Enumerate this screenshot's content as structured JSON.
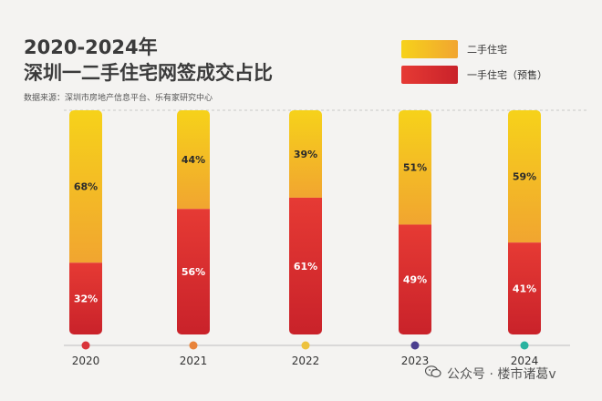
{
  "header": {
    "title_line1": "2020-2024年",
    "title_line2": "深圳一二手住宅网签成交占比",
    "source": "数据来源：深圳市房地产信息平台、乐有家研究中心"
  },
  "footer": {
    "watermark": "公众号 · 楼市诸葛v"
  },
  "colors": {
    "second_hand_top": "#f6d21a",
    "second_hand_bottom": "#f1a530",
    "new_top": "#e63a34",
    "new_bottom": "#c9222a",
    "axis_dots": [
      "#d9343a",
      "#e8833a",
      "#edc23e",
      "#4b3f8f",
      "#2ab3a0"
    ]
  },
  "chart_data": {
    "type": "bar",
    "stacked": true,
    "normalized_100": true,
    "categories": [
      "2020",
      "2021",
      "2022",
      "2023",
      "2024"
    ],
    "series": [
      {
        "name": "二手住宅",
        "values": [
          68,
          44,
          39,
          51,
          59
        ],
        "labels": [
          "68%",
          "44%",
          "39%",
          "51%",
          "59%"
        ]
      },
      {
        "name": "一手住宅（预售）",
        "values": [
          32,
          56,
          61,
          49,
          41
        ],
        "labels": [
          "32%",
          "56%",
          "61%",
          "49%",
          "41%"
        ]
      }
    ],
    "ylim": [
      0,
      100
    ],
    "legend_position": "top-right"
  }
}
